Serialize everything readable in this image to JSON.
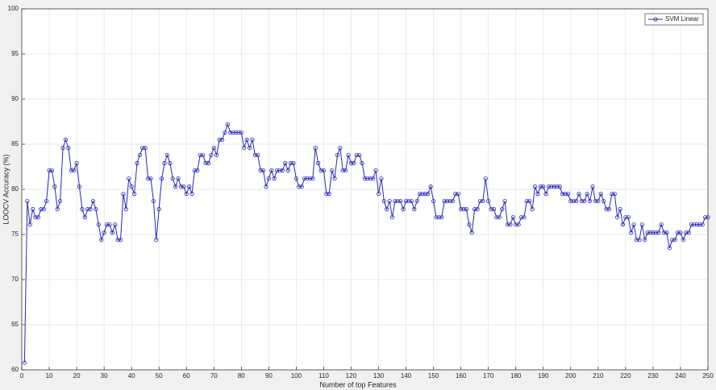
{
  "chart_data": {
    "type": "line",
    "xlabel": "Number of top Features",
    "ylabel": "LOOCV Accuracy (%)",
    "x": [
      1,
      2,
      3,
      4,
      5,
      6,
      7,
      8,
      9,
      10,
      11,
      12,
      13,
      14,
      15,
      16,
      17,
      18,
      19,
      20,
      21,
      22,
      23,
      24,
      25,
      26,
      27,
      28,
      29,
      30,
      31,
      32,
      33,
      34,
      35,
      36,
      37,
      38,
      39,
      40,
      41,
      42,
      43,
      44,
      45,
      46,
      47,
      48,
      49,
      50,
      51,
      52,
      53,
      54,
      55,
      56,
      57,
      58,
      59,
      60,
      61,
      62,
      63,
      64,
      65,
      66,
      67,
      68,
      69,
      70,
      71,
      72,
      73,
      74,
      75,
      76,
      77,
      78,
      79,
      80,
      81,
      82,
      83,
      84,
      85,
      86,
      87,
      88,
      89,
      90,
      91,
      92,
      93,
      94,
      95,
      96,
      97,
      98,
      99,
      100,
      101,
      102,
      103,
      104,
      105,
      106,
      107,
      108,
      109,
      110,
      111,
      112,
      113,
      114,
      115,
      116,
      117,
      118,
      119,
      120,
      121,
      122,
      123,
      124,
      125,
      126,
      127,
      128,
      129,
      130,
      131,
      132,
      133,
      134,
      135,
      136,
      137,
      138,
      139,
      140,
      141,
      142,
      143,
      144,
      145,
      146,
      147,
      148,
      149,
      150,
      151,
      152,
      153,
      154,
      155,
      156,
      157,
      158,
      159,
      160,
      161,
      162,
      163,
      164,
      165,
      166,
      167,
      168,
      169,
      170,
      171,
      172,
      173,
      174,
      175,
      176,
      177,
      178,
      179,
      180,
      181,
      182,
      183,
      184,
      185,
      186,
      187,
      188,
      189,
      190,
      191,
      192,
      193,
      194,
      195,
      196,
      197,
      198,
      199,
      200,
      201,
      202,
      203,
      204,
      205,
      206,
      207,
      208,
      209,
      210,
      211,
      212,
      213,
      214,
      215,
      216,
      217,
      218,
      219,
      220,
      221,
      222,
      223,
      224,
      225,
      226,
      227,
      228,
      229,
      230,
      231,
      232,
      233,
      234,
      235,
      236,
      237,
      238,
      239,
      240,
      241,
      242,
      243,
      244,
      245,
      246,
      247,
      248,
      249,
      250
    ],
    "series": [
      {
        "name": "SVM Linear",
        "color": "#2828b4",
        "values": [
          60.8,
          78.7,
          76.1,
          77.8,
          76.9,
          76.9,
          77.8,
          77.8,
          78.7,
          82.1,
          82.1,
          80.3,
          77.8,
          78.7,
          84.6,
          85.5,
          84.6,
          82.1,
          82.1,
          82.9,
          80.3,
          77.8,
          76.9,
          77.8,
          77.8,
          78.7,
          77.8,
          76.1,
          74.4,
          75.2,
          76.1,
          76.1,
          75.2,
          76.1,
          74.4,
          74.4,
          79.5,
          77.8,
          81.2,
          80.3,
          79.5,
          82.9,
          83.8,
          84.6,
          84.6,
          81.2,
          81.2,
          78.7,
          74.4,
          77.8,
          81.2,
          82.9,
          83.8,
          82.9,
          81.2,
          80.3,
          81.2,
          80.3,
          80.3,
          79.5,
          80.3,
          79.5,
          82.1,
          82.1,
          83.8,
          83.8,
          82.9,
          82.9,
          83.8,
          84.6,
          83.8,
          85.5,
          85.5,
          86.3,
          87.2,
          86.3,
          86.3,
          86.3,
          86.3,
          86.3,
          84.6,
          85.5,
          84.6,
          85.5,
          83.8,
          83.8,
          82.1,
          82.1,
          80.3,
          81.2,
          82.1,
          81.2,
          82.1,
          82.1,
          82.1,
          82.9,
          82.1,
          82.9,
          82.9,
          81.2,
          80.3,
          80.3,
          81.2,
          81.2,
          81.2,
          81.2,
          84.6,
          82.9,
          82.1,
          82.1,
          79.5,
          79.5,
          82.1,
          81.2,
          83.8,
          84.6,
          82.1,
          82.1,
          83.8,
          82.9,
          82.9,
          83.8,
          83.8,
          82.9,
          81.2,
          81.2,
          81.2,
          81.2,
          82.1,
          79.5,
          81.2,
          78.7,
          77.8,
          78.7,
          76.9,
          78.7,
          78.7,
          78.7,
          77.8,
          78.7,
          78.7,
          78.7,
          77.8,
          78.7,
          79.5,
          79.5,
          79.5,
          79.5,
          80.3,
          78.7,
          76.9,
          76.9,
          76.9,
          78.7,
          78.7,
          78.7,
          78.7,
          79.5,
          79.5,
          77.8,
          77.8,
          77.8,
          76.1,
          75.2,
          77.8,
          77.8,
          78.7,
          78.7,
          81.2,
          78.7,
          77.8,
          77.8,
          76.9,
          76.9,
          77.8,
          78.7,
          76.1,
          76.1,
          76.9,
          76.1,
          76.1,
          76.9,
          76.9,
          78.7,
          78.7,
          77.8,
          80.3,
          79.5,
          80.3,
          80.3,
          79.5,
          80.3,
          80.3,
          80.3,
          80.3,
          80.3,
          79.5,
          79.5,
          79.5,
          78.7,
          78.7,
          78.7,
          79.5,
          78.7,
          78.7,
          79.5,
          78.7,
          80.3,
          78.7,
          78.7,
          79.5,
          78.7,
          77.8,
          77.8,
          79.5,
          79.5,
          76.9,
          77.8,
          76.1,
          76.9,
          76.9,
          75.2,
          76.1,
          74.4,
          74.4,
          76.1,
          74.4,
          75.2,
          75.2,
          75.2,
          75.2,
          75.2,
          76.1,
          75.2,
          75.2,
          73.5,
          74.4,
          74.4,
          75.2,
          75.2,
          74.4,
          75.2,
          75.2,
          76.1,
          76.1,
          76.1,
          76.1,
          76.1,
          76.9,
          76.9
        ]
      }
    ],
    "xlim": [
      0,
      250
    ],
    "xticks": [
      0,
      10,
      20,
      30,
      40,
      50,
      60,
      70,
      80,
      90,
      100,
      110,
      120,
      130,
      140,
      150,
      160,
      170,
      180,
      190,
      200,
      210,
      220,
      230,
      240,
      250
    ],
    "ylim": [
      60,
      100
    ],
    "yticks": [
      60,
      65,
      70,
      75,
      80,
      85,
      90,
      95,
      100
    ],
    "grid": true,
    "legend": "top-right"
  }
}
